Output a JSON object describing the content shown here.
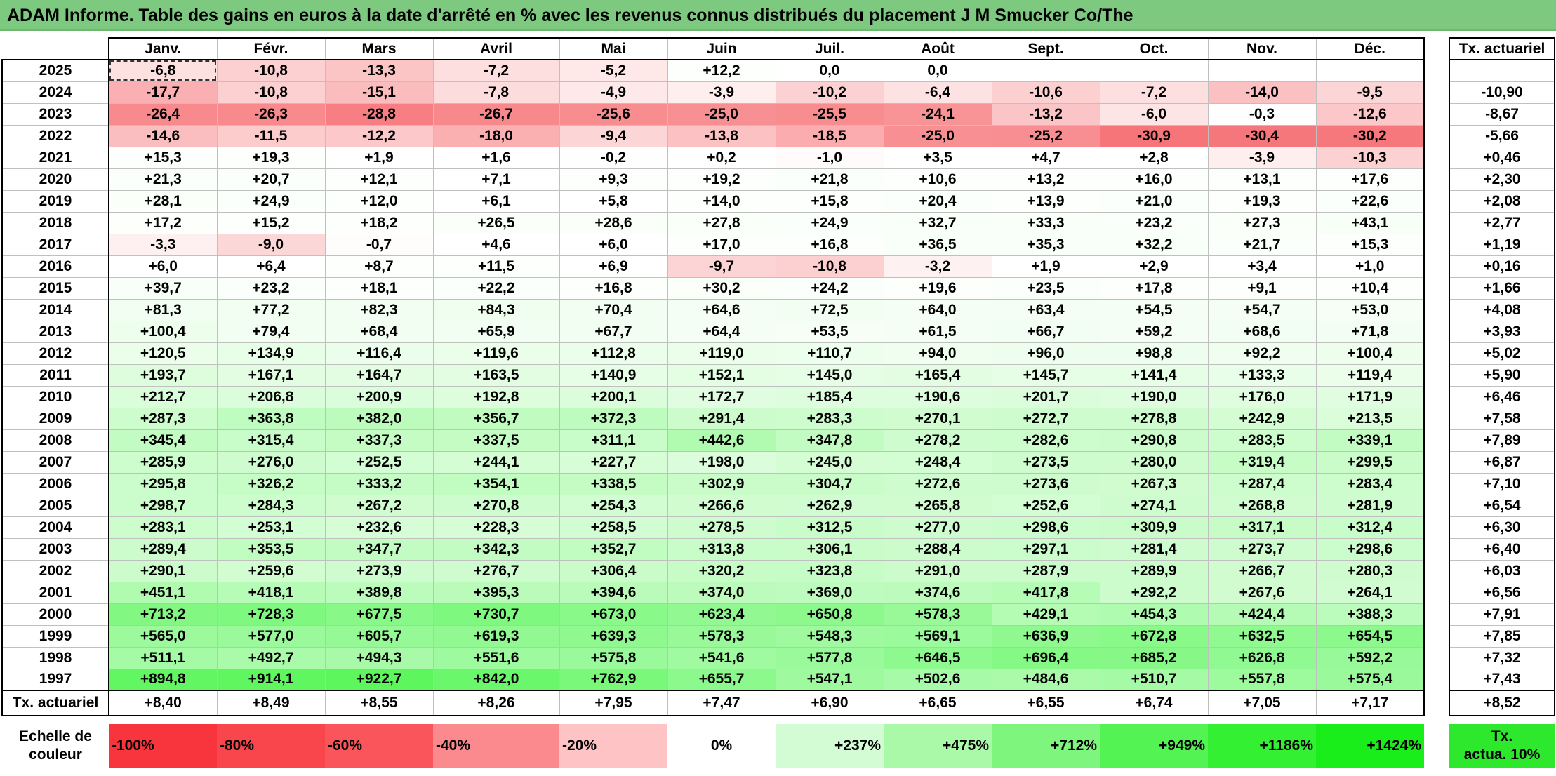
{
  "title": "ADAM Informe. Table des gains en euros à la date d'arrêté en % avec les revenus connus distribués du placement J M Smucker Co/The",
  "months": [
    "Janv.",
    "Févr.",
    "Mars",
    "Avril",
    "Mai",
    "Juin",
    "Juil.",
    "Août",
    "Sept.",
    "Oct.",
    "Nov.",
    "Déc."
  ],
  "tx_header": "Tx. actuariel",
  "rows": [
    {
      "year": "2025",
      "values": [
        "-6,8",
        "-10,8",
        "-13,3",
        "-7,2",
        "-5,2",
        "+12,2",
        "0,0",
        "0,0",
        "",
        "",
        "",
        ""
      ],
      "tx": ""
    },
    {
      "year": "2024",
      "values": [
        "-17,7",
        "-10,8",
        "-15,1",
        "-7,8",
        "-4,9",
        "-3,9",
        "-10,2",
        "-6,4",
        "-10,6",
        "-7,2",
        "-14,0",
        "-9,5"
      ],
      "tx": "-10,90"
    },
    {
      "year": "2023",
      "values": [
        "-26,4",
        "-26,3",
        "-28,8",
        "-26,7",
        "-25,6",
        "-25,0",
        "-25,5",
        "-24,1",
        "-13,2",
        "-6,0",
        "-0,3",
        "-12,6"
      ],
      "tx": "-8,67"
    },
    {
      "year": "2022",
      "values": [
        "-14,6",
        "-11,5",
        "-12,2",
        "-18,0",
        "-9,4",
        "-13,8",
        "-18,5",
        "-25,0",
        "-25,2",
        "-30,9",
        "-30,4",
        "-30,2"
      ],
      "tx": "-5,66"
    },
    {
      "year": "2021",
      "values": [
        "+15,3",
        "+19,3",
        "+1,9",
        "+1,6",
        "-0,2",
        "+0,2",
        "-1,0",
        "+3,5",
        "+4,7",
        "+2,8",
        "-3,9",
        "-10,3"
      ],
      "tx": "+0,46"
    },
    {
      "year": "2020",
      "values": [
        "+21,3",
        "+20,7",
        "+12,1",
        "+7,1",
        "+9,3",
        "+19,2",
        "+21,8",
        "+10,6",
        "+13,2",
        "+16,0",
        "+13,1",
        "+17,6"
      ],
      "tx": "+2,30"
    },
    {
      "year": "2019",
      "values": [
        "+28,1",
        "+24,9",
        "+12,0",
        "+6,1",
        "+5,8",
        "+14,0",
        "+15,8",
        "+20,4",
        "+13,9",
        "+21,0",
        "+19,3",
        "+22,6"
      ],
      "tx": "+2,08"
    },
    {
      "year": "2018",
      "values": [
        "+17,2",
        "+15,2",
        "+18,2",
        "+26,5",
        "+28,6",
        "+27,8",
        "+24,9",
        "+32,7",
        "+33,3",
        "+23,2",
        "+27,3",
        "+43,1"
      ],
      "tx": "+2,77"
    },
    {
      "year": "2017",
      "values": [
        "-3,3",
        "-9,0",
        "-0,7",
        "+4,6",
        "+6,0",
        "+17,0",
        "+16,8",
        "+36,5",
        "+35,3",
        "+32,2",
        "+21,7",
        "+15,3"
      ],
      "tx": "+1,19"
    },
    {
      "year": "2016",
      "values": [
        "+6,0",
        "+6,4",
        "+8,7",
        "+11,5",
        "+6,9",
        "-9,7",
        "-10,8",
        "-3,2",
        "+1,9",
        "+2,9",
        "+3,4",
        "+1,0"
      ],
      "tx": "+0,16"
    },
    {
      "year": "2015",
      "values": [
        "+39,7",
        "+23,2",
        "+18,1",
        "+22,2",
        "+16,8",
        "+30,2",
        "+24,2",
        "+19,6",
        "+23,5",
        "+17,8",
        "+9,1",
        "+10,4"
      ],
      "tx": "+1,66"
    },
    {
      "year": "2014",
      "values": [
        "+81,3",
        "+77,2",
        "+82,3",
        "+84,3",
        "+70,4",
        "+64,6",
        "+72,5",
        "+64,0",
        "+63,4",
        "+54,5",
        "+54,7",
        "+53,0"
      ],
      "tx": "+4,08"
    },
    {
      "year": "2013",
      "values": [
        "+100,4",
        "+79,4",
        "+68,4",
        "+65,9",
        "+67,7",
        "+64,4",
        "+53,5",
        "+61,5",
        "+66,7",
        "+59,2",
        "+68,6",
        "+71,8"
      ],
      "tx": "+3,93"
    },
    {
      "year": "2012",
      "values": [
        "+120,5",
        "+134,9",
        "+116,4",
        "+119,6",
        "+112,8",
        "+119,0",
        "+110,7",
        "+94,0",
        "+96,0",
        "+98,8",
        "+92,2",
        "+100,4"
      ],
      "tx": "+5,02"
    },
    {
      "year": "2011",
      "values": [
        "+193,7",
        "+167,1",
        "+164,7",
        "+163,5",
        "+140,9",
        "+152,1",
        "+145,0",
        "+165,4",
        "+145,7",
        "+141,4",
        "+133,3",
        "+119,4"
      ],
      "tx": "+5,90"
    },
    {
      "year": "2010",
      "values": [
        "+212,7",
        "+206,8",
        "+200,9",
        "+192,8",
        "+200,1",
        "+172,7",
        "+185,4",
        "+190,6",
        "+201,7",
        "+190,0",
        "+176,0",
        "+171,9"
      ],
      "tx": "+6,46"
    },
    {
      "year": "2009",
      "values": [
        "+287,3",
        "+363,8",
        "+382,0",
        "+356,7",
        "+372,3",
        "+291,4",
        "+283,3",
        "+270,1",
        "+272,7",
        "+278,8",
        "+242,9",
        "+213,5"
      ],
      "tx": "+7,58"
    },
    {
      "year": "2008",
      "values": [
        "+345,4",
        "+315,4",
        "+337,3",
        "+337,5",
        "+311,1",
        "+442,6",
        "+347,8",
        "+278,2",
        "+282,6",
        "+290,8",
        "+283,5",
        "+339,1"
      ],
      "tx": "+7,89"
    },
    {
      "year": "2007",
      "values": [
        "+285,9",
        "+276,0",
        "+252,5",
        "+244,1",
        "+227,7",
        "+198,0",
        "+245,0",
        "+248,4",
        "+273,5",
        "+280,0",
        "+319,4",
        "+299,5"
      ],
      "tx": "+6,87"
    },
    {
      "year": "2006",
      "values": [
        "+295,8",
        "+326,2",
        "+333,2",
        "+354,1",
        "+338,5",
        "+302,9",
        "+304,7",
        "+272,6",
        "+273,6",
        "+267,3",
        "+287,4",
        "+283,4"
      ],
      "tx": "+7,10"
    },
    {
      "year": "2005",
      "values": [
        "+298,7",
        "+284,3",
        "+267,2",
        "+270,8",
        "+254,3",
        "+266,6",
        "+262,9",
        "+265,8",
        "+252,6",
        "+274,1",
        "+268,8",
        "+281,9"
      ],
      "tx": "+6,54"
    },
    {
      "year": "2004",
      "values": [
        "+283,1",
        "+253,1",
        "+232,6",
        "+228,3",
        "+258,5",
        "+278,5",
        "+312,5",
        "+277,0",
        "+298,6",
        "+309,9",
        "+317,1",
        "+312,4"
      ],
      "tx": "+6,30"
    },
    {
      "year": "2003",
      "values": [
        "+289,4",
        "+353,5",
        "+347,7",
        "+342,3",
        "+352,7",
        "+313,8",
        "+306,1",
        "+288,4",
        "+297,1",
        "+281,4",
        "+273,7",
        "+298,6"
      ],
      "tx": "+6,40"
    },
    {
      "year": "2002",
      "values": [
        "+290,1",
        "+259,6",
        "+273,9",
        "+276,7",
        "+306,4",
        "+320,2",
        "+323,8",
        "+291,0",
        "+287,9",
        "+289,9",
        "+266,7",
        "+280,3"
      ],
      "tx": "+6,03"
    },
    {
      "year": "2001",
      "values": [
        "+451,1",
        "+418,1",
        "+389,8",
        "+395,3",
        "+394,6",
        "+374,0",
        "+369,0",
        "+374,6",
        "+417,8",
        "+292,2",
        "+267,6",
        "+264,1"
      ],
      "tx": "+6,56"
    },
    {
      "year": "2000",
      "values": [
        "+713,2",
        "+728,3",
        "+677,5",
        "+730,7",
        "+673,0",
        "+623,4",
        "+650,8",
        "+578,3",
        "+429,1",
        "+454,3",
        "+424,4",
        "+388,3"
      ],
      "tx": "+7,91"
    },
    {
      "year": "1999",
      "values": [
        "+565,0",
        "+577,0",
        "+605,7",
        "+619,3",
        "+639,3",
        "+578,3",
        "+548,3",
        "+569,1",
        "+636,9",
        "+672,8",
        "+632,5",
        "+654,5"
      ],
      "tx": "+7,85"
    },
    {
      "year": "1998",
      "values": [
        "+511,1",
        "+492,7",
        "+494,3",
        "+551,6",
        "+575,8",
        "+541,6",
        "+577,8",
        "+646,5",
        "+696,4",
        "+685,2",
        "+626,8",
        "+592,2"
      ],
      "tx": "+7,32"
    },
    {
      "year": "1997",
      "values": [
        "+894,8",
        "+914,1",
        "+922,7",
        "+842,0",
        "+762,9",
        "+655,7",
        "+547,1",
        "+502,6",
        "+484,6",
        "+510,7",
        "+557,8",
        "+575,4"
      ],
      "tx": "+7,43"
    }
  ],
  "summary": {
    "label": "Tx. actuariel",
    "values": [
      "+8,40",
      "+8,49",
      "+8,55",
      "+8,26",
      "+7,95",
      "+7,47",
      "+6,90",
      "+6,65",
      "+6,55",
      "+6,74",
      "+7,05",
      "+7,17"
    ],
    "tx": "+8,52"
  },
  "scale": {
    "label_line1": "Echelle de",
    "label_line2": "couleur",
    "items": [
      {
        "label": "-100%",
        "color": "#f8353d"
      },
      {
        "label": "-80%",
        "color": "#f9454c"
      },
      {
        "label": "-60%",
        "color": "#fa555b"
      },
      {
        "label": "-40%",
        "color": "#fb8a8e"
      },
      {
        "label": "-20%",
        "color": "#fdc3c5"
      },
      {
        "label": "0%",
        "color": "#ffffff"
      },
      {
        "label": "+237%",
        "color": "#d4fcd4"
      },
      {
        "label": "+475%",
        "color": "#a9f9a9"
      },
      {
        "label": "+712%",
        "color": "#7ef67e"
      },
      {
        "label": "+949%",
        "color": "#53f353"
      },
      {
        "label": "+1186%",
        "color": "#33f033"
      },
      {
        "label": "+1424%",
        "color": "#1aee1a"
      }
    ],
    "tx_line1": "Tx.",
    "tx_line2": "actua. 10%",
    "tx_color": "#2ee82e"
  }
}
